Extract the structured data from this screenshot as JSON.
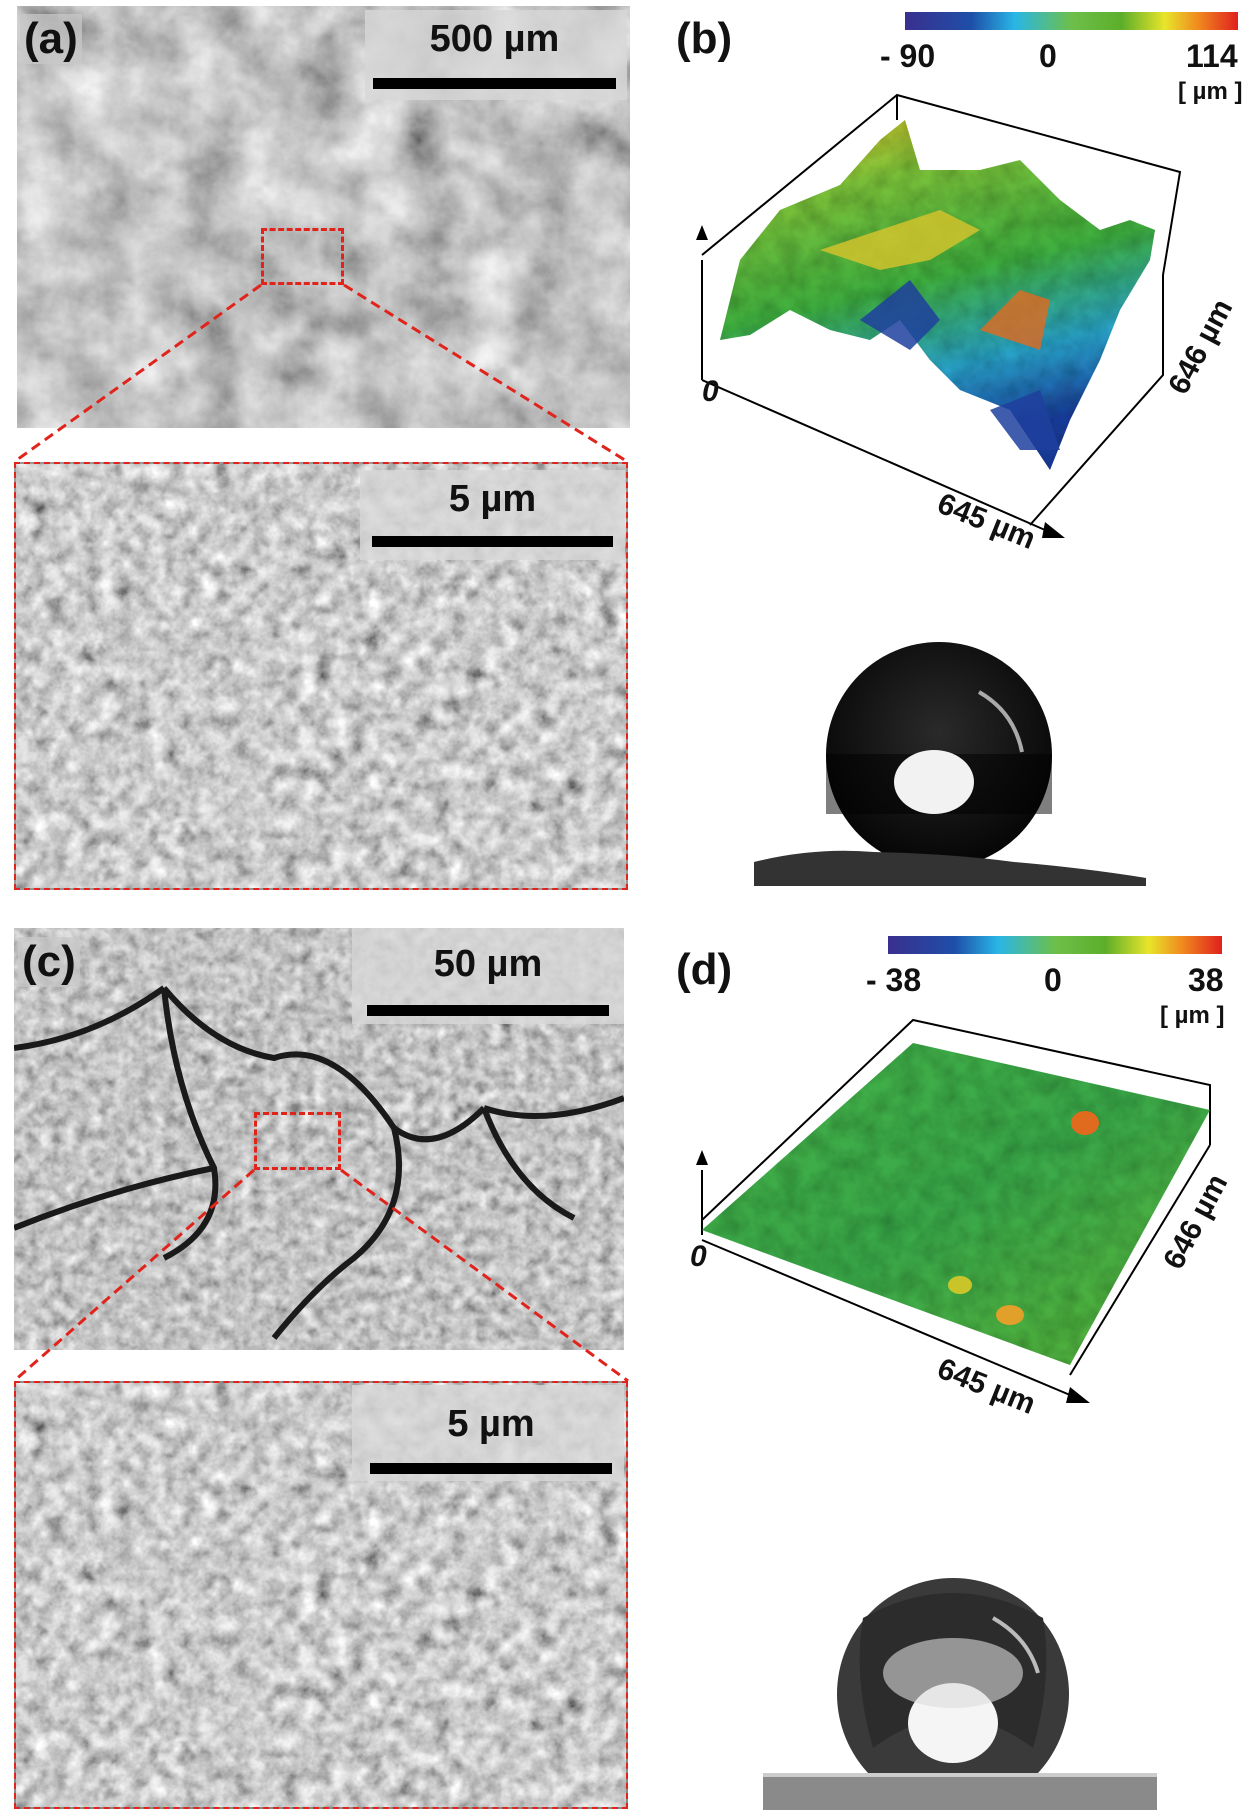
{
  "panels": {
    "a": {
      "label": "(a)",
      "scale_bar": "500 µm",
      "inset_scale_bar": "5 µm"
    },
    "b": {
      "label": "(b)",
      "colorbar": {
        "min": "- 90",
        "mid": "0",
        "max": "114",
        "unit": "[ µm ]"
      },
      "axes": {
        "origin": "0",
        "x": "645 µm",
        "y": "646 µm"
      }
    },
    "c": {
      "label": "(c)",
      "scale_bar": "50 µm",
      "inset_scale_bar": "5 µm"
    },
    "d": {
      "label": "(d)",
      "colorbar": {
        "min": "- 38",
        "mid": "0",
        "max": "38",
        "unit": "[ µm ]"
      },
      "axes": {
        "origin": "0",
        "x": "645 µm",
        "y": "646 µm"
      }
    }
  },
  "colors": {
    "highlight_box": "#e0231b",
    "colormap": [
      "#3a2f8f",
      "#29b6e6",
      "#5cae2a",
      "#e8e52a",
      "#e0201e"
    ]
  }
}
